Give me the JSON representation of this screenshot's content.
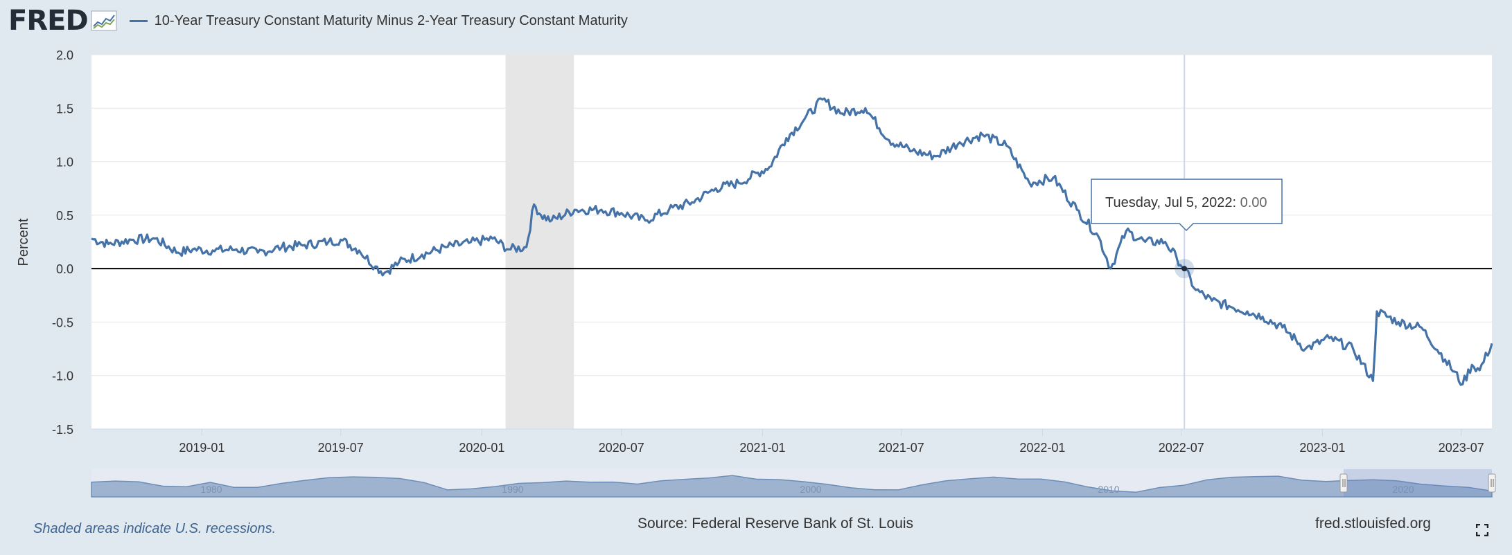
{
  "header": {
    "logo_text": "FRED",
    "series_title": "10-Year Treasury Constant Maturity Minus 2-Year Treasury Constant Maturity"
  },
  "footer": {
    "recession_note": "Shaded areas indicate U.S. recessions.",
    "source": "Source: Federal Reserve Bank of St. Louis",
    "site": "fred.stlouisfed.org"
  },
  "tooltip": {
    "date": "Tuesday, Jul 5, 2022",
    "value": "0.00"
  },
  "navigator": {
    "labels": [
      "1980",
      "1990",
      "2000",
      "2010",
      "2020"
    ]
  },
  "colors": {
    "series": "#4572a7",
    "background": "#e1e9f0",
    "plot": "#ffffff",
    "recession": "#e6e6e6",
    "navigator_fill": "#9eb3cf"
  },
  "chart_data": {
    "type": "line",
    "ylabel": "Percent",
    "xlabel": "",
    "ylim": [
      -1.5,
      2.0
    ],
    "xlim": [
      "2018-08-10",
      "2023-08-10"
    ],
    "yticks": [
      "2.0",
      "1.5",
      "1.0",
      "0.5",
      "0.0",
      "-0.5",
      "-1.0",
      "-1.5"
    ],
    "xticks": [
      "2019-01",
      "2019-07",
      "2020-01",
      "2020-07",
      "2021-01",
      "2021-07",
      "2022-01",
      "2022-07",
      "2023-01",
      "2023-07"
    ],
    "recessions": [
      [
        "2020-02-01",
        "2020-04-30"
      ]
    ],
    "crosshair_date": "2022-07-05",
    "series": [
      {
        "name": "10-Year Treasury Constant Maturity Minus 2-Year Treasury Constant Maturity",
        "x": [
          "2018-08-10",
          "2018-09-01",
          "2018-10-01",
          "2018-11-01",
          "2018-12-01",
          "2018-12-20",
          "2019-01-15",
          "2019-02-15",
          "2019-03-15",
          "2019-04-15",
          "2019-05-15",
          "2019-06-15",
          "2019-07-01",
          "2019-07-25",
          "2019-08-15",
          "2019-08-27",
          "2019-09-15",
          "2019-10-15",
          "2019-11-15",
          "2019-12-15",
          "2020-01-15",
          "2020-02-05",
          "2020-02-28",
          "2020-03-09",
          "2020-03-18",
          "2020-04-01",
          "2020-05-01",
          "2020-06-05",
          "2020-07-01",
          "2020-08-01",
          "2020-09-01",
          "2020-10-01",
          "2020-11-01",
          "2020-12-01",
          "2021-01-10",
          "2021-02-01",
          "2021-02-25",
          "2021-03-20",
          "2021-04-15",
          "2021-05-15",
          "2021-06-15",
          "2021-07-15",
          "2021-08-15",
          "2021-09-15",
          "2021-10-15",
          "2021-11-15",
          "2021-12-15",
          "2022-01-15",
          "2022-02-15",
          "2022-03-15",
          "2022-03-31",
          "2022-04-20",
          "2022-05-15",
          "2022-06-10",
          "2022-06-25",
          "2022-07-05",
          "2022-07-20",
          "2022-08-10",
          "2022-09-01",
          "2022-09-25",
          "2022-10-15",
          "2022-11-10",
          "2022-12-10",
          "2023-01-10",
          "2023-02-10",
          "2023-03-08",
          "2023-03-13",
          "2023-04-10",
          "2023-05-10",
          "2023-06-10",
          "2023-07-03",
          "2023-07-15",
          "2023-07-25",
          "2023-08-10"
        ],
        "values": [
          0.28,
          0.23,
          0.27,
          0.28,
          0.15,
          0.18,
          0.17,
          0.18,
          0.15,
          0.2,
          0.22,
          0.25,
          0.27,
          0.17,
          0.02,
          -0.04,
          0.06,
          0.13,
          0.2,
          0.24,
          0.28,
          0.18,
          0.2,
          0.6,
          0.5,
          0.45,
          0.55,
          0.55,
          0.52,
          0.45,
          0.55,
          0.62,
          0.75,
          0.8,
          0.95,
          1.22,
          1.4,
          1.58,
          1.45,
          1.5,
          1.2,
          1.1,
          1.05,
          1.18,
          1.25,
          1.15,
          0.8,
          0.85,
          0.55,
          0.3,
          0.0,
          0.35,
          0.25,
          0.25,
          0.1,
          0.0,
          -0.2,
          -0.3,
          -0.35,
          -0.4,
          -0.45,
          -0.55,
          -0.75,
          -0.65,
          -0.75,
          -1.05,
          -0.4,
          -0.5,
          -0.55,
          -0.85,
          -1.08,
          -0.9,
          -0.95,
          -0.7
        ]
      }
    ]
  }
}
